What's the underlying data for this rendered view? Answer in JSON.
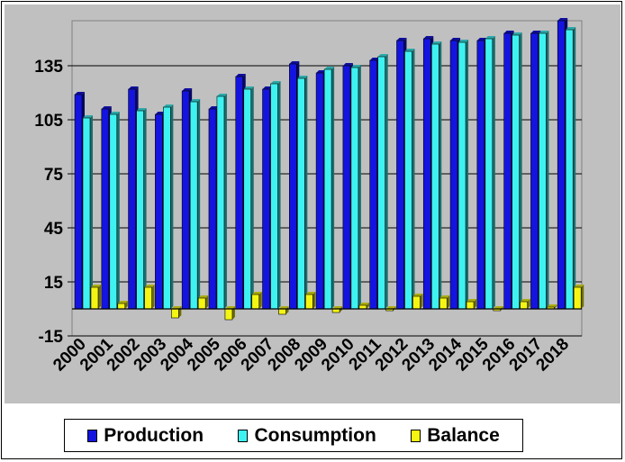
{
  "chart_data": {
    "type": "bar",
    "categories": [
      "2000",
      "2001",
      "2002",
      "2003",
      "2004",
      "2005",
      "2006",
      "2007",
      "2008",
      "2009",
      "2010",
      "2011",
      "2012",
      "2013",
      "2014",
      "2015",
      "2016",
      "2017",
      "2018"
    ],
    "series": [
      {
        "name": "Production",
        "color": "#1414e0",
        "values": [
          119,
          111,
          122,
          108,
          121,
          111,
          129,
          122,
          136,
          131,
          135,
          138,
          149,
          150,
          149,
          149,
          153,
          153,
          160
        ]
      },
      {
        "name": "Consumption",
        "color": "#3ff2f2",
        "values": [
          106,
          108,
          110,
          112,
          115,
          118,
          122,
          125,
          128,
          133,
          134,
          140,
          143,
          147,
          148,
          150,
          152,
          153,
          155
        ]
      },
      {
        "name": "Balance",
        "color": "#f5f514",
        "values": [
          12,
          3,
          12,
          -5,
          6,
          -6,
          8,
          -3,
          8,
          -2,
          2,
          -1,
          7,
          6,
          4,
          -1,
          4,
          1,
          12
        ]
      }
    ],
    "yticks": [
      -15,
      15,
      45,
      75,
      105,
      135
    ],
    "ylim": [
      -15,
      160
    ],
    "grid": true,
    "legend": "bottom",
    "plot_background": "#c0c0c0"
  }
}
